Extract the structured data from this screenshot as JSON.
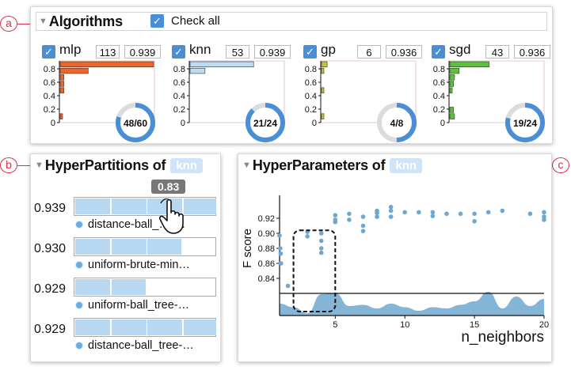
{
  "callouts": {
    "a": "a",
    "b": "b",
    "c": "c"
  },
  "algorithms": {
    "title": "Algorithms",
    "check_all_label": "Check all",
    "check_mark": "✓",
    "cards": [
      {
        "name": "mlp",
        "count": "113",
        "score": "0.939",
        "ring_label": "48/60",
        "ring_fraction": 0.8,
        "color": "#f0642a",
        "bars": [
          1.0,
          0.3,
          0.04,
          0.04,
          0.04,
          0,
          0,
          0,
          0.02
        ]
      },
      {
        "name": "knn",
        "count": "53",
        "score": "0.939",
        "ring_label": "21/24",
        "ring_fraction": 0.875,
        "color": "#bcdcf4",
        "bars": [
          0.68,
          0.16,
          0.0,
          0.0,
          0,
          0,
          0,
          0,
          0
        ]
      },
      {
        "name": "gp",
        "count": "6",
        "score": "0.936",
        "ring_label": "4/8",
        "ring_fraction": 0.5,
        "color": "#c8c43a",
        "bars": [
          0.06,
          0.02,
          0,
          0,
          0.02,
          0,
          0,
          0,
          0.02
        ]
      },
      {
        "name": "sgd",
        "count": "43",
        "score": "0.936",
        "ring_label": "19/24",
        "ring_fraction": 0.79,
        "color": "#5cc23a",
        "bars": [
          0.42,
          0.1,
          0.05,
          0.04,
          0.02,
          0,
          0,
          0.04,
          0.05
        ]
      }
    ],
    "yticks": [
      "0.8",
      "0.6",
      "0.4",
      "0.2",
      "0"
    ]
  },
  "hyperpartitions": {
    "title": "HyperPartitions of",
    "tag": "knn",
    "tooltip": "0.83",
    "rows": [
      {
        "score": "0.939",
        "label": "distance-ball_…-…",
        "fill": 1.0
      },
      {
        "score": "0.930",
        "label": "uniform-brute-min…",
        "fill": 0.75
      },
      {
        "score": "0.929",
        "label": "uniform-ball_tree-…",
        "fill": 0.5
      },
      {
        "score": "0.929",
        "label": "distance-ball_tree-…",
        "fill": 1.0
      }
    ]
  },
  "hyperparameters": {
    "title": "HyperParameters of",
    "tag": "knn"
  },
  "chart_data": {
    "type": "scatter",
    "title": "",
    "xlabel": "n_neighbors",
    "ylabel": "F score",
    "xlim": [
      1,
      20
    ],
    "ylim": [
      0.82,
      0.94
    ],
    "xticks": [
      "5",
      "10",
      "15",
      "20"
    ],
    "yticks": [
      "0.84",
      "0.86",
      "0.88",
      "0.90",
      "0.92"
    ],
    "points": [
      [
        1,
        0.897
      ],
      [
        1.05,
        0.88
      ],
      [
        1.08,
        0.873
      ],
      [
        1.1,
        0.86
      ],
      [
        1.6,
        0.83
      ],
      [
        3,
        0.902
      ],
      [
        3,
        0.896
      ],
      [
        4,
        0.9
      ],
      [
        4,
        0.89
      ],
      [
        4,
        0.88
      ],
      [
        4,
        0.874
      ],
      [
        5,
        0.924
      ],
      [
        5,
        0.918
      ],
      [
        5,
        0.915
      ],
      [
        6,
        0.926
      ],
      [
        6,
        0.918
      ],
      [
        7,
        0.922
      ],
      [
        7,
        0.91
      ],
      [
        7,
        0.903
      ],
      [
        8,
        0.93
      ],
      [
        8,
        0.927
      ],
      [
        8,
        0.922
      ],
      [
        9,
        0.935
      ],
      [
        9,
        0.93
      ],
      [
        9,
        0.922
      ],
      [
        10,
        0.928
      ],
      [
        11,
        0.928
      ],
      [
        12,
        0.928
      ],
      [
        12,
        0.923
      ],
      [
        13,
        0.926
      ],
      [
        14,
        0.926
      ],
      [
        15,
        0.926
      ],
      [
        15,
        0.916
      ],
      [
        16,
        0.928
      ],
      [
        17,
        0.93
      ],
      [
        19,
        0.926
      ],
      [
        20,
        0.928
      ],
      [
        20,
        0.922
      ],
      [
        20,
        0.918
      ]
    ],
    "density": [
      0.5,
      0.35,
      0.1,
      0.9,
      0.95,
      0.4,
      0.45,
      0.3,
      0.5,
      0.35,
      0.2,
      0.35,
      0.3,
      0.45,
      0.6,
      1.0,
      0.3,
      0.8,
      0.4,
      0.7
    ],
    "highlight_box": {
      "x": [
        2,
        5
      ],
      "y": [
        0.81,
        0.904
      ]
    }
  }
}
